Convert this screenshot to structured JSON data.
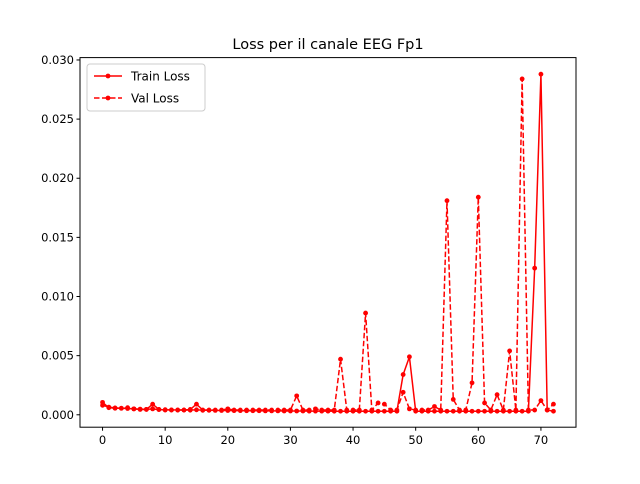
{
  "chart_data": {
    "type": "line",
    "title": "Loss per il canale EEG Fp1",
    "xlabel": "",
    "ylabel": "",
    "xlim": [
      -3.6,
      75.6
    ],
    "ylim": [
      -0.00105,
      0.0302
    ],
    "xticks": [
      0,
      10,
      20,
      30,
      40,
      50,
      60,
      70
    ],
    "yticks": [
      "0.000",
      "0.005",
      "0.010",
      "0.015",
      "0.020",
      "0.025",
      "0.030"
    ],
    "legend": {
      "position": "top-left",
      "entries": [
        "Train Loss",
        "Val Loss"
      ]
    },
    "grid": false,
    "color": "#ff0000",
    "x": [
      0,
      1,
      2,
      3,
      4,
      5,
      6,
      7,
      8,
      9,
      10,
      11,
      12,
      13,
      14,
      15,
      16,
      17,
      18,
      19,
      20,
      21,
      22,
      23,
      24,
      25,
      26,
      27,
      28,
      29,
      30,
      31,
      32,
      33,
      34,
      35,
      36,
      37,
      38,
      39,
      40,
      41,
      42,
      43,
      44,
      45,
      46,
      47,
      48,
      49,
      50,
      51,
      52,
      53,
      54,
      55,
      56,
      57,
      58,
      59,
      60,
      61,
      62,
      63,
      64,
      65,
      66,
      67,
      68,
      69,
      70,
      71,
      72
    ],
    "series": [
      {
        "name": "Train Loss",
        "style": "solid",
        "values": [
          0.0008,
          0.00065,
          0.00058,
          0.00055,
          0.00053,
          0.0005,
          0.00048,
          0.00046,
          0.0005,
          0.00044,
          0.00043,
          0.00041,
          0.0004,
          0.0004,
          0.00039,
          0.00042,
          0.00038,
          0.00038,
          0.00037,
          0.00036,
          0.00036,
          0.00035,
          0.00035,
          0.00034,
          0.00034,
          0.00034,
          0.00033,
          0.00033,
          0.00033,
          0.00032,
          0.00032,
          0.00032,
          0.00032,
          0.00031,
          0.00031,
          0.00031,
          0.00031,
          0.0003,
          0.0003,
          0.0003,
          0.0003,
          0.0003,
          0.0003,
          0.0003,
          0.0003,
          0.0003,
          0.0003,
          0.0003,
          0.0034,
          0.0049,
          0.0003,
          0.0003,
          0.0003,
          0.0003,
          0.0003,
          0.0003,
          0.0003,
          0.0003,
          0.0003,
          0.0003,
          0.0003,
          0.0003,
          0.0003,
          0.0003,
          0.0003,
          0.0003,
          0.0003,
          0.0003,
          0.0003,
          0.0124,
          0.0288,
          0.0004,
          0.0003
        ]
      },
      {
        "name": "Val Loss",
        "style": "dashed",
        "values": [
          0.00105,
          0.0006,
          0.00055,
          0.00055,
          0.0006,
          0.0005,
          0.00045,
          0.00045,
          0.0009,
          0.00045,
          0.0004,
          0.0004,
          0.0004,
          0.0004,
          0.00045,
          0.0009,
          0.0004,
          0.0004,
          0.0004,
          0.0004,
          0.0005,
          0.0004,
          0.0004,
          0.0004,
          0.0004,
          0.0004,
          0.0004,
          0.0004,
          0.0004,
          0.0004,
          0.0004,
          0.0016,
          0.0004,
          0.0004,
          0.0005,
          0.0004,
          0.0004,
          0.0004,
          0.0047,
          0.0004,
          0.0004,
          0.0004,
          0.0086,
          0.0004,
          0.001,
          0.0009,
          0.0004,
          0.0004,
          0.0019,
          0.0005,
          0.0004,
          0.0004,
          0.0004,
          0.0007,
          0.0004,
          0.0181,
          0.0013,
          0.0004,
          0.0004,
          0.0027,
          0.0184,
          0.001,
          0.0004,
          0.0017,
          0.0004,
          0.0054,
          0.0004,
          0.0284,
          0.0004,
          0.0004,
          0.0012,
          0.0004,
          0.0009
        ]
      }
    ]
  }
}
